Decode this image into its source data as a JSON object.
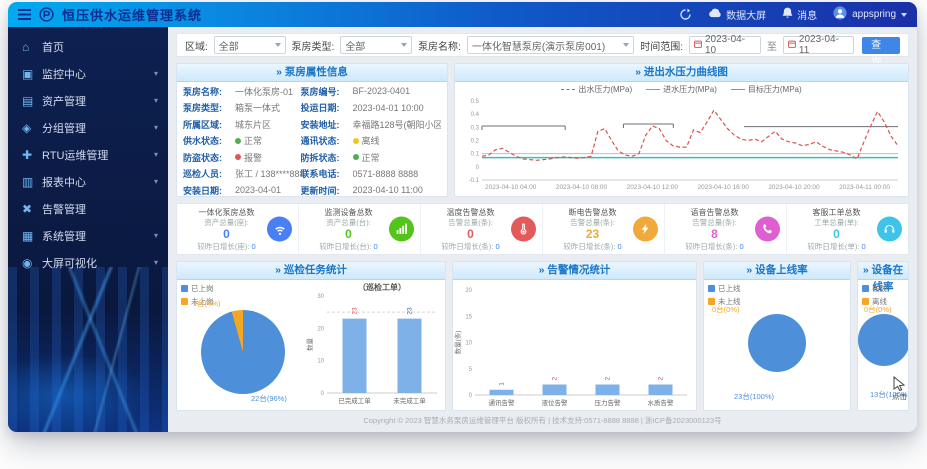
{
  "header": {
    "title": "恒压供水运维管理系统",
    "screen_label": "数据大屏",
    "msg_label": "消息",
    "user_name": "appspring"
  },
  "sidebar": {
    "items": [
      {
        "id": "home",
        "icon": "home-icon",
        "label": "首页",
        "caret": false
      },
      {
        "id": "monitor",
        "icon": "monitor-icon",
        "label": "监控中心",
        "caret": true
      },
      {
        "id": "asset",
        "icon": "asset-icon",
        "label": "资产管理",
        "caret": true
      },
      {
        "id": "group",
        "icon": "group-icon",
        "label": "分组管理",
        "caret": true
      },
      {
        "id": "rtu",
        "icon": "rtu-icon",
        "label": "RTU运维管理",
        "caret": true
      },
      {
        "id": "report",
        "icon": "report-icon",
        "label": "报表中心",
        "caret": true
      },
      {
        "id": "alarm",
        "icon": "alarm-icon",
        "label": "告警管理",
        "caret": false
      },
      {
        "id": "system",
        "icon": "system-icon",
        "label": "系统管理",
        "caret": true
      },
      {
        "id": "screen",
        "icon": "screen-icon",
        "label": "大屏可视化",
        "caret": true
      }
    ]
  },
  "filters": {
    "area": {
      "label": "区域:",
      "value": "全部"
    },
    "type": {
      "label": "泵房类型:",
      "value": "全部"
    },
    "name": {
      "label": "泵房名称:",
      "value": "一体化智慧泵房(演示泵房001)"
    },
    "time": {
      "label": "时间范围:",
      "start": "2023-04-10",
      "sep": "至",
      "end": "2023-04-11"
    },
    "query_label": "查询"
  },
  "panels": {
    "info": {
      "title": "» 泵房属性信息",
      "rows": [
        [
          {
            "k": "泵房名称",
            "v": "一体化泵房-01"
          },
          {
            "k": "泵房编号",
            "v": "BF-2023-0401"
          }
        ],
        [
          {
            "k": "泵房类型",
            "v": "箱泵一体式"
          },
          {
            "k": "投运日期",
            "v": "2023-04-01 10:00"
          }
        ],
        [
          {
            "k": "所属区域",
            "v": "城东片区"
          },
          {
            "k": "安装地址",
            "v": "幸福路128号(朝阳小区西门旁)"
          }
        ],
        [
          {
            "k": "供水状态",
            "v": "正常",
            "dot": "#4caf50"
          },
          {
            "k": "通讯状态",
            "v": "离线",
            "dot": "#f5c518"
          }
        ],
        [
          {
            "k": "防盗状态",
            "v": "报警",
            "dot": "#e05555"
          },
          {
            "k": "防拆状态",
            "v": "正常",
            "dot": "#4caf50"
          }
        ],
        [
          {
            "k": "巡检人员",
            "v": "张工 / 138****8888"
          },
          {
            "k": "联系电话",
            "v": "0571-8888 8888"
          }
        ],
        [
          {
            "k": "安装日期",
            "v": "2023-04-01"
          },
          {
            "k": "更新时间",
            "v": "2023-04-10 11:00"
          }
        ]
      ]
    },
    "pressure": {
      "title": "» 进出水压力曲线图"
    },
    "p1": {
      "title": "» 巡检任务统计",
      "legend": [
        {
          "label": "已上岗",
          "color": "#4e8fd9"
        },
        {
          "label": "未上岗",
          "color": "#f5a623"
        }
      ],
      "callout_top": "1台(4%)",
      "callout_bottom": "22台(96%)"
    },
    "p2": {
      "title": "» 告警情况统计"
    },
    "p3": {
      "title": "» 设备上线率",
      "legend": [
        {
          "label": "已上线",
          "color": "#4e8fd9"
        },
        {
          "label": "未上线",
          "color": "#f5a623"
        }
      ],
      "callout_top": "0台(0%)",
      "callout_bottom": "23台(100%)"
    },
    "p4": {
      "title": "» 设备在线率",
      "legend": [
        {
          "label": "在线",
          "color": "#4e8fd9"
        },
        {
          "label": "离线",
          "color": "#f5a623"
        }
      ],
      "callout_top": "0台(0%)",
      "callout_bottom": "13台(100%)",
      "cursor_label": "点击"
    }
  },
  "stats": {
    "cards": [
      {
        "icon": "wifi-icon",
        "color": "#4a7ef5",
        "title": "一体化泵房总数",
        "sub": "资产总量(座):",
        "value": "0",
        "growth_label": "较昨日增长(座):",
        "growth": "0"
      },
      {
        "icon": "signal-icon",
        "color": "#52c41a",
        "title": "监测设备总数",
        "sub": "资产总量(台):",
        "value": "0",
        "growth_label": "较昨日增长(台):",
        "growth": "0"
      },
      {
        "icon": "thermometer-icon",
        "color": "#e25a5a",
        "title": "温度告警总数",
        "sub": "告警总量(条):",
        "value": "0",
        "growth_label": "较昨日增长(条):",
        "growth": "0"
      },
      {
        "icon": "lightning-icon",
        "color": "#f0a93a",
        "title": "断电告警总数",
        "sub": "告警总量(条):",
        "value": "23",
        "growth_label": "较昨日增长(条):",
        "growth": "0"
      },
      {
        "icon": "phone-icon",
        "color": "#e05fd0",
        "title": "语音告警总数",
        "sub": "告警总量(条):",
        "value": "8",
        "growth_label": "较昨日增长(条):",
        "growth": "0"
      },
      {
        "icon": "headset-icon",
        "color": "#3fc3e8",
        "title": "客服工单总数",
        "sub": "工单总量(单):",
        "value": "0",
        "growth_label": "较昨日增长(单):",
        "growth": "0"
      }
    ]
  },
  "footer": {
    "text": "Copyright © 2023 智慧水务泵房运维管理平台 版权所有 | 技术支持:0571-8888 8888 | 浙ICP备2023000123号"
  },
  "chart_data": [
    {
      "id": "pressure",
      "type": "line",
      "title": "进出水压力曲线图",
      "series": [
        {
          "name": "出水压力(MPa)",
          "color": "#d9534f",
          "style": "dashed"
        },
        {
          "name": "进水压力(MPa)",
          "color": "#3bbfb0",
          "style": "solid"
        },
        {
          "name": "目标压力(MPa)",
          "color": "#8a8f98",
          "style": "solid"
        }
      ],
      "values": [
        0.08,
        0.09,
        0.13,
        0.14,
        0.11,
        0.08,
        0.06,
        0.055,
        0.05,
        0.055,
        0.06,
        0.07,
        0.075,
        0.07,
        0.065,
        0.07,
        0.08,
        0.27,
        0.29,
        0.2,
        0.12,
        0.09,
        0.08,
        0.1,
        0.24,
        0.31,
        0.29,
        0.2,
        0.16,
        0.15,
        0.15,
        0.28,
        0.26,
        0.34,
        0.43,
        0.36,
        0.29,
        0.24,
        0.21,
        0.2,
        0.21,
        0.19,
        0.23,
        0.27,
        0.21,
        0.19,
        0.18,
        0.16,
        0.17,
        0.19,
        0.155,
        0.13,
        0.12,
        0.11,
        0.09,
        0.06,
        0.19,
        0.31,
        0.42,
        0.34,
        0.23,
        0.16
      ],
      "inlet_value": 0.07,
      "target_line": 0.1,
      "target_segments": [
        {
          "from": 0.0,
          "to": 0.2,
          "v": 0.31,
          "tick": true
        },
        {
          "from": 0.34,
          "to": 0.46,
          "v": 0.325,
          "tick": true
        },
        {
          "from": 0.63,
          "to": 1.0,
          "v": 0.305,
          "tick": false
        }
      ],
      "ylim": [
        -0.1,
        0.5
      ],
      "yticks": [
        0.5,
        0.4,
        0.3,
        0.2,
        0.1,
        0,
        -0.1
      ],
      "xlabels": [
        "2023-04-10 04:00",
        "2023-04-10 08:00",
        "2023-04-10 12:00",
        "2023-04-10 16:00",
        "2023-04-10 20:00",
        "2023-04-11 00:00"
      ]
    },
    {
      "id": "inspect_pie",
      "type": "pie",
      "title": "巡检任务统计",
      "slices": [
        {
          "label": "已上岗",
          "value": 22,
          "color": "#4e8fd9"
        },
        {
          "label": "未上岗",
          "value": 1,
          "color": "#f5a623"
        }
      ]
    },
    {
      "id": "inspect_bars",
      "type": "bar",
      "inner_title": "（巡检工单）",
      "ylabel": "数量",
      "categories": [
        "已完成工单",
        "未完成工单"
      ],
      "values": [
        23,
        23
      ],
      "value_labels": [
        "23",
        "23"
      ],
      "value_colors": [
        "#d9534f",
        "#2f6db5"
      ],
      "ylim": [
        0,
        30
      ],
      "yticks": [
        0,
        10,
        20,
        30
      ],
      "refline": 25,
      "bar_color": "#7eb1e8"
    },
    {
      "id": "alarm_bars",
      "type": "bar",
      "ylabel": "数量(条)",
      "categories": [
        "通讯告警",
        "液位告警",
        "压力告警",
        "水质告警"
      ],
      "values": [
        1,
        2,
        2,
        2
      ],
      "value_labels": [
        "1",
        "2",
        "2",
        "2"
      ],
      "ylim": [
        0,
        20
      ],
      "yticks": [
        0,
        5,
        10,
        15,
        20
      ],
      "bar_color": "#7eb1e8"
    },
    {
      "id": "online_pie",
      "type": "pie",
      "title": "设备上线率",
      "slices": [
        {
          "label": "已上线",
          "value": 23,
          "color": "#4e8fd9"
        },
        {
          "label": "未上线",
          "value": 0,
          "color": "#f5a623"
        }
      ]
    },
    {
      "id": "live_pie",
      "type": "pie",
      "title": "设备在线率",
      "slices": [
        {
          "label": "在线",
          "value": 13,
          "color": "#4e8fd9"
        },
        {
          "label": "离线",
          "value": 0,
          "color": "#f5a623"
        }
      ]
    }
  ]
}
